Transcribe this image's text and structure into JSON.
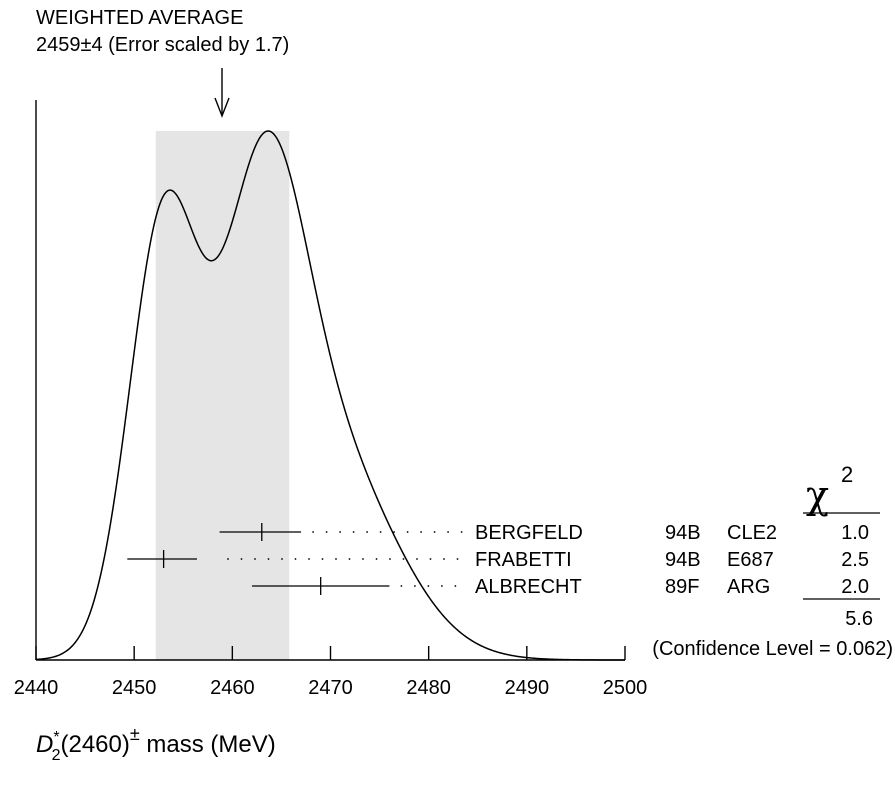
{
  "chart_data": {
    "type": "ideogram",
    "title": "WEIGHTED AVERAGE",
    "subtitle": "2459±4 (Error scaled by 1.7)",
    "weighted_average": {
      "value": 2459,
      "error": 4,
      "error_scale": 1.7
    },
    "xlabel": {
      "symbol": "D",
      "superscript": "*",
      "subscript": "2",
      "resonance": "(2460)",
      "charge": "±",
      "suffix": " mass (MeV)"
    },
    "xlim": [
      2440,
      2500
    ],
    "xticks": [
      "2440",
      "2450",
      "2460",
      "2470",
      "2480",
      "2490",
      "2500"
    ],
    "chi2_header": "χ",
    "chi2_header_exponent": "2",
    "measurements": [
      {
        "author": "BERGFELD",
        "ref": "94B",
        "experiment": "CLE2",
        "value": 2463.0,
        "error_low": 4.3,
        "error_high": 4.0,
        "chi2": "1.0"
      },
      {
        "author": "FRABETTI",
        "ref": "94B",
        "experiment": "E687",
        "value": 2453.0,
        "error_low": 3.7,
        "error_high": 3.4,
        "chi2": "2.5"
      },
      {
        "author": "ALBRECHT",
        "ref": "89F",
        "experiment": "ARG",
        "value": 2469.0,
        "error_low": 7.0,
        "error_high": 7.0,
        "chi2": "2.0"
      }
    ],
    "chi2_total": "5.6",
    "confidence_level": "(Confidence Level = 0.062)"
  }
}
